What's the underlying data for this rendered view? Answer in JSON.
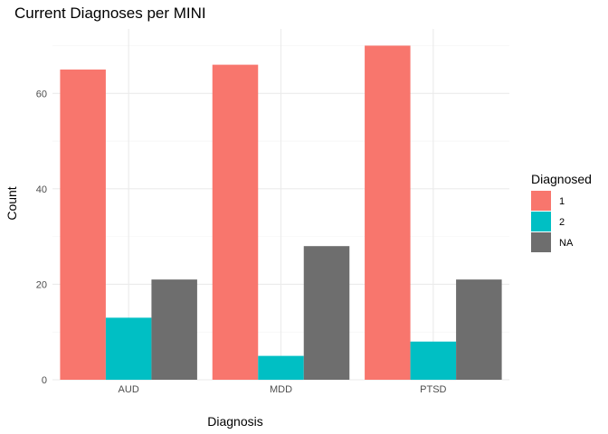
{
  "chart_data": {
    "type": "bar",
    "title": "Current Diagnoses per MINI",
    "xlabel": "Diagnosis",
    "ylabel": "Count",
    "categories": [
      "AUD",
      "MDD",
      "PTSD"
    ],
    "series": [
      {
        "name": "1",
        "values": [
          65,
          66,
          70
        ],
        "color": "#F8766D"
      },
      {
        "name": "2",
        "values": [
          13,
          5,
          8
        ],
        "color": "#00BFC4"
      },
      {
        "name": "NA",
        "values": [
          21,
          28,
          21
        ],
        "color": "#6E6E6E"
      }
    ],
    "ylim": [
      0,
      73.5
    ],
    "yticks": [
      0,
      20,
      40,
      60
    ],
    "grid": true,
    "legend": {
      "title": "Diagnosed",
      "placement": "right"
    }
  }
}
